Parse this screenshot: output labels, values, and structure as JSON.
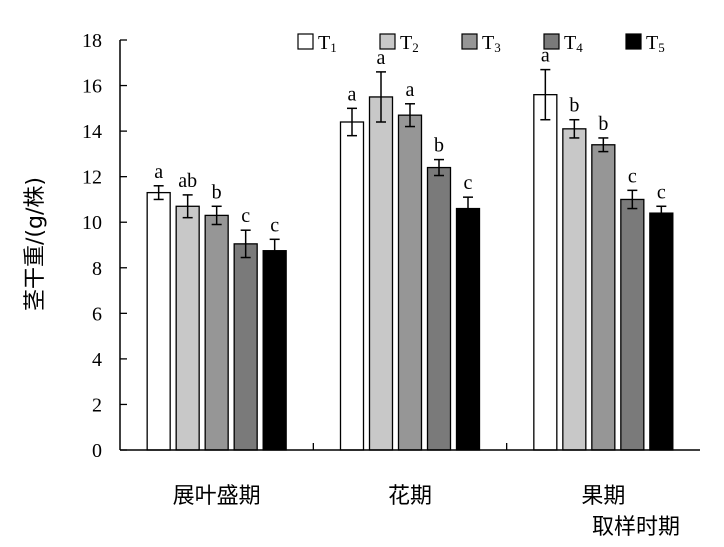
{
  "chart_data": {
    "type": "bar",
    "title": "",
    "xlabel": "取样时期",
    "ylabel": "茎干重/(g/株)",
    "ylim": [
      0,
      18
    ],
    "yticks": [
      0,
      2,
      4,
      6,
      8,
      10,
      12,
      14,
      16,
      18
    ],
    "grid": false,
    "legend_position": "top",
    "categories": [
      "展叶盛期",
      "花期",
      "果期"
    ],
    "series": [
      {
        "name": "T1",
        "label_main": "T",
        "label_sub": "1",
        "color": "#ffffff",
        "values": [
          11.3,
          14.4,
          15.6
        ],
        "errors": [
          0.3,
          0.6,
          1.1
        ],
        "letters": [
          "a",
          "a",
          "a"
        ]
      },
      {
        "name": "T2",
        "label_main": "T",
        "label_sub": "2",
        "color": "#c8c8c8",
        "values": [
          10.7,
          15.5,
          14.1
        ],
        "errors": [
          0.5,
          1.1,
          0.4
        ],
        "letters": [
          "ab",
          "a",
          "b"
        ]
      },
      {
        "name": "T3",
        "label_main": "T",
        "label_sub": "3",
        "color": "#969696",
        "values": [
          10.3,
          14.7,
          13.4
        ],
        "errors": [
          0.4,
          0.5,
          0.3
        ],
        "letters": [
          "b",
          "a",
          "b"
        ]
      },
      {
        "name": "T4",
        "label_main": "T",
        "label_sub": "4",
        "color": "#7a7a7a",
        "values": [
          9.05,
          12.4,
          11.0
        ],
        "errors": [
          0.6,
          0.35,
          0.4
        ],
        "letters": [
          "c",
          "b",
          "c"
        ]
      },
      {
        "name": "T5",
        "label_main": "T",
        "label_sub": "5",
        "color": "#000000",
        "values": [
          8.75,
          10.6,
          10.4
        ],
        "errors": [
          0.5,
          0.5,
          0.3
        ],
        "letters": [
          "c",
          "c",
          "c"
        ]
      }
    ]
  }
}
